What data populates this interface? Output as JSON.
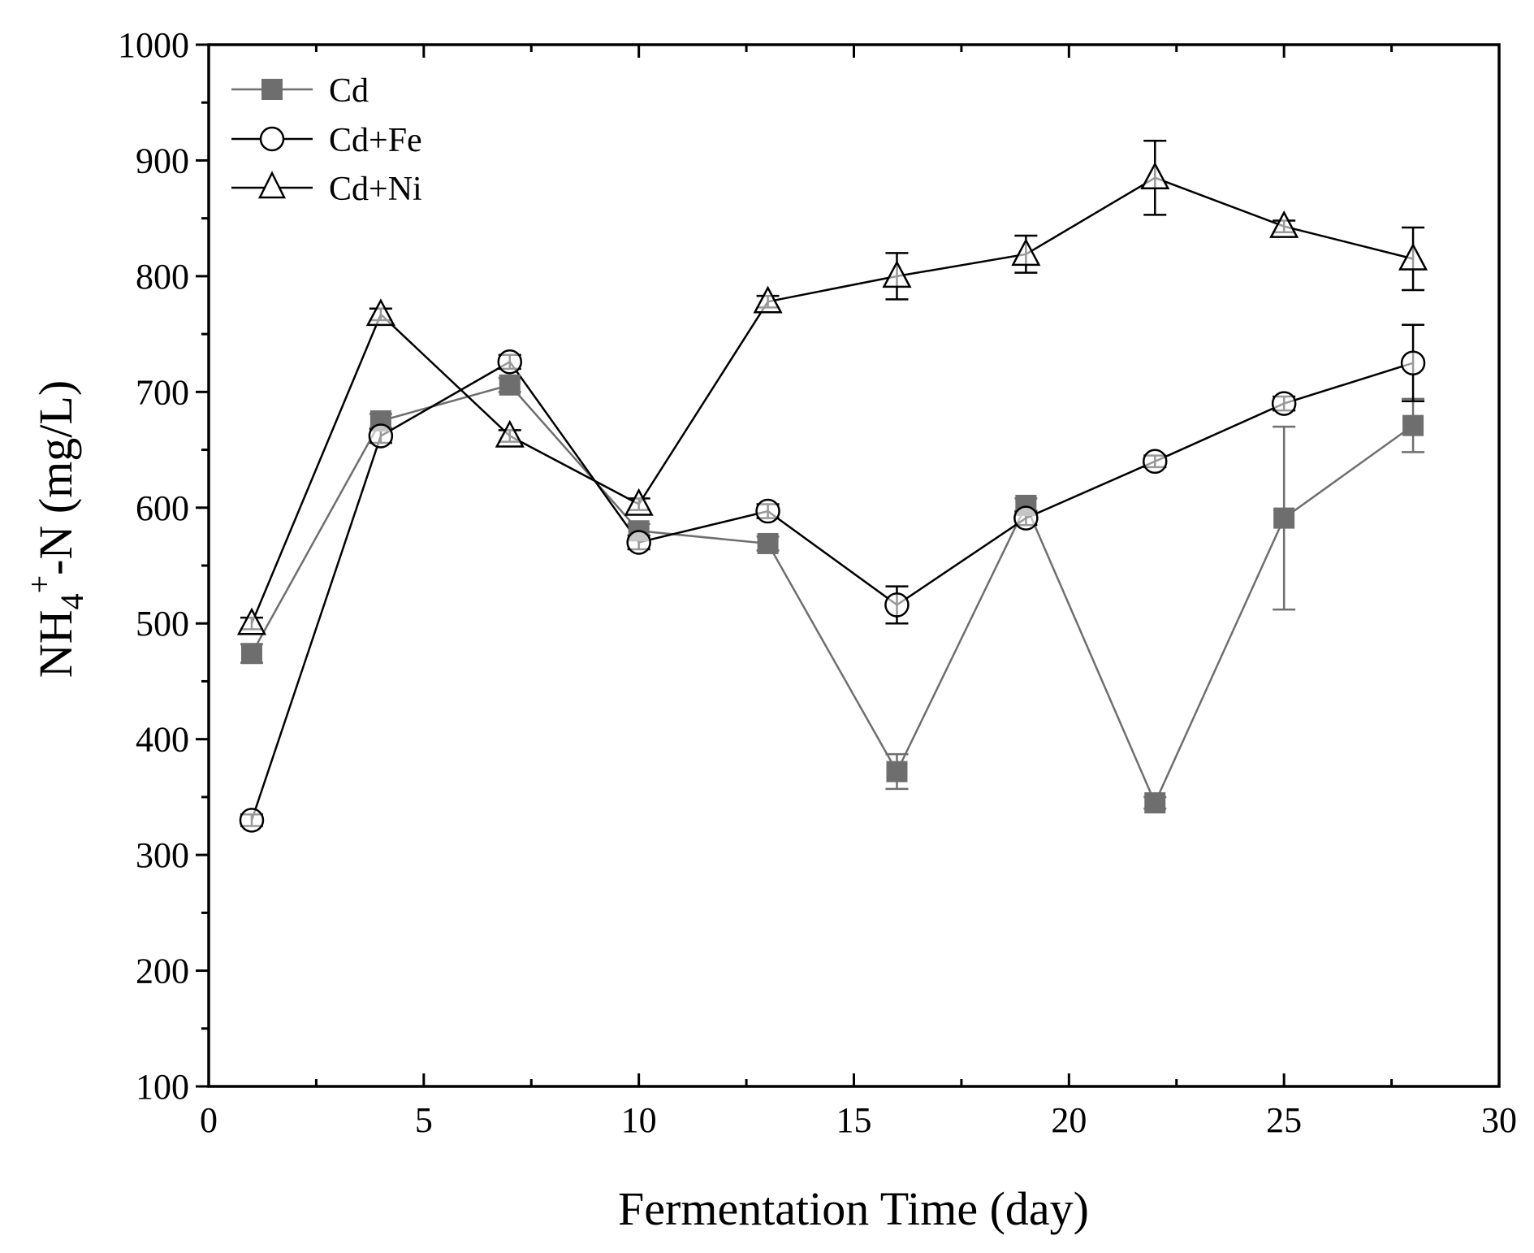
{
  "chart_data": {
    "type": "line",
    "title": "",
    "xlabel": "Fermentation Time (day)",
    "ylabel_main": "NH",
    "ylabel_sub": "4",
    "ylabel_sup": "+",
    "ylabel_rest": "-N (mg/L)",
    "xlim": [
      0,
      30
    ],
    "ylim": [
      100,
      1000
    ],
    "xticks": [
      0,
      5,
      10,
      15,
      20,
      25,
      30
    ],
    "yticks": [
      100,
      200,
      300,
      400,
      500,
      600,
      700,
      800,
      900,
      1000
    ],
    "xtick_labels": [
      "0",
      "5",
      "10",
      "15",
      "20",
      "25",
      "30"
    ],
    "ytick_labels": [
      "100",
      "200",
      "300",
      "400",
      "500",
      "600",
      "700",
      "800",
      "900",
      "1000"
    ],
    "grid": false,
    "legend_position": "top-left",
    "x": [
      1,
      4,
      7,
      10,
      13,
      16,
      19,
      22,
      25,
      28
    ],
    "series": [
      {
        "name": "Cd",
        "marker": "square",
        "color": "#6e6e6e",
        "values": [
          474,
          675,
          706,
          580,
          569,
          372,
          602,
          345,
          591,
          671
        ],
        "errors": [
          8,
          6,
          6,
          6,
          6,
          15,
          6,
          5,
          79,
          23
        ]
      },
      {
        "name": "Cd+Fe",
        "marker": "circle",
        "color": "#000000",
        "values": [
          330,
          662,
          726,
          570,
          597,
          516,
          591,
          640,
          690,
          725
        ],
        "errors": [
          5,
          6,
          6,
          6,
          6,
          16,
          6,
          5,
          6,
          33
        ]
      },
      {
        "name": "Cd+Ni",
        "marker": "triangle",
        "color": "#000000",
        "values": [
          500,
          767,
          662,
          603,
          778,
          800,
          819,
          885,
          843,
          815
        ],
        "errors": [
          5,
          5,
          5,
          5,
          5,
          20,
          16,
          32,
          5,
          27
        ]
      }
    ]
  }
}
